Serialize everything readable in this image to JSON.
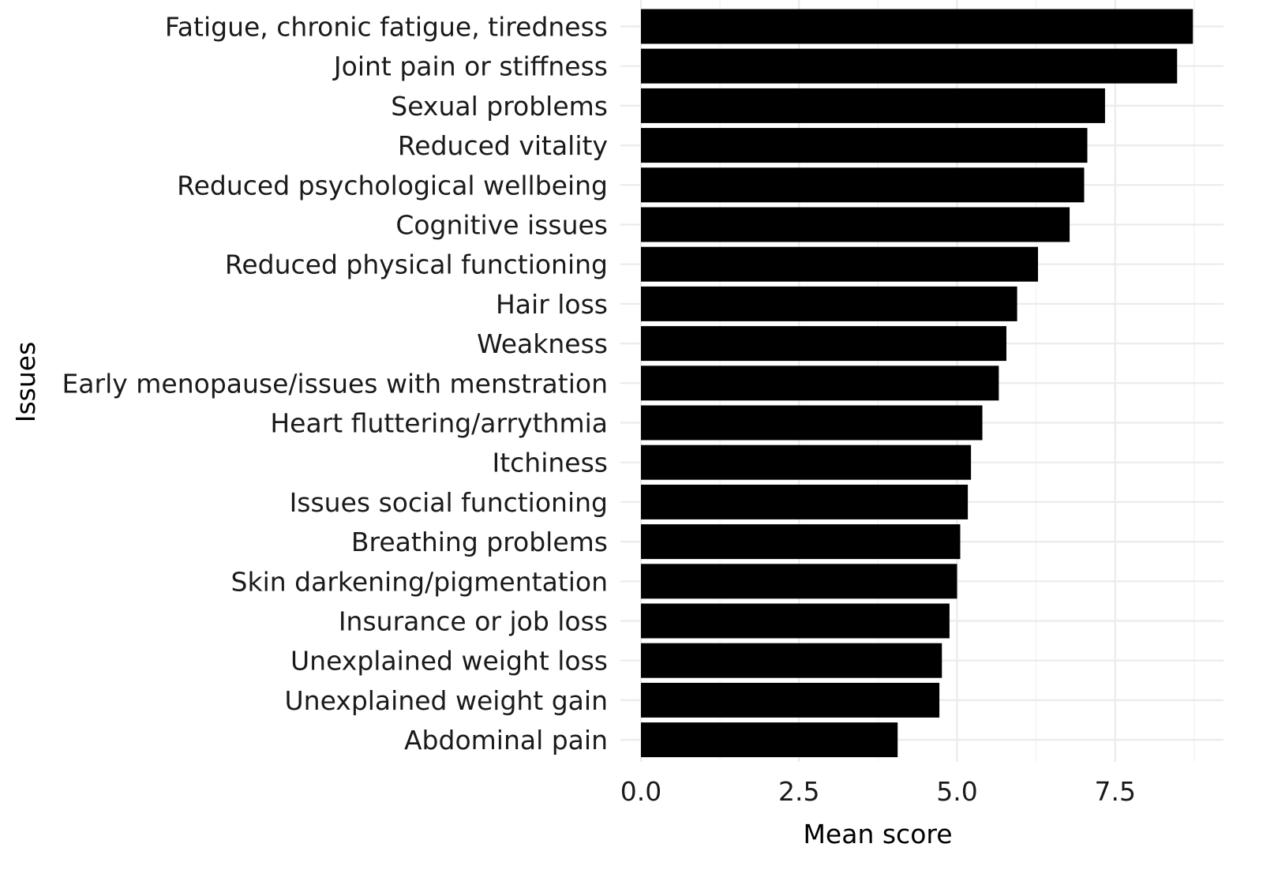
{
  "chart_data": {
    "type": "bar",
    "orientation": "horizontal",
    "xlabel": "Mean score",
    "ylabel": "Issues",
    "xlim": [
      0,
      8.9
    ],
    "xticks": [
      "0.0",
      "2.5",
      "5.0",
      "7.5"
    ],
    "xtick_values": [
      0,
      2.5,
      5.0,
      7.5
    ],
    "grid": true,
    "bar_color": "#000000",
    "categories": [
      "Fatigue, chronic fatigue, tiredness",
      "Joint pain or stiffness",
      "Sexual problems",
      "Reduced vitality",
      "Reduced psychological wellbeing",
      "Cognitive issues",
      "Reduced physical functioning",
      "Hair loss",
      "Weakness",
      "Early menopause/issues with menstration",
      "Heart fluttering/arrythmia",
      "Itchiness",
      "Issues social functioning",
      "Breathing problems",
      "Skin darkening/pigmentation",
      "Insurance or job loss",
      "Unexplained weight loss",
      "Unexplained weight gain",
      "Abdominal pain"
    ],
    "values": [
      8.73,
      8.48,
      7.34,
      7.06,
      7.01,
      6.78,
      6.28,
      5.95,
      5.78,
      5.66,
      5.4,
      5.22,
      5.17,
      5.05,
      5.0,
      4.88,
      4.76,
      4.72,
      4.06
    ]
  }
}
